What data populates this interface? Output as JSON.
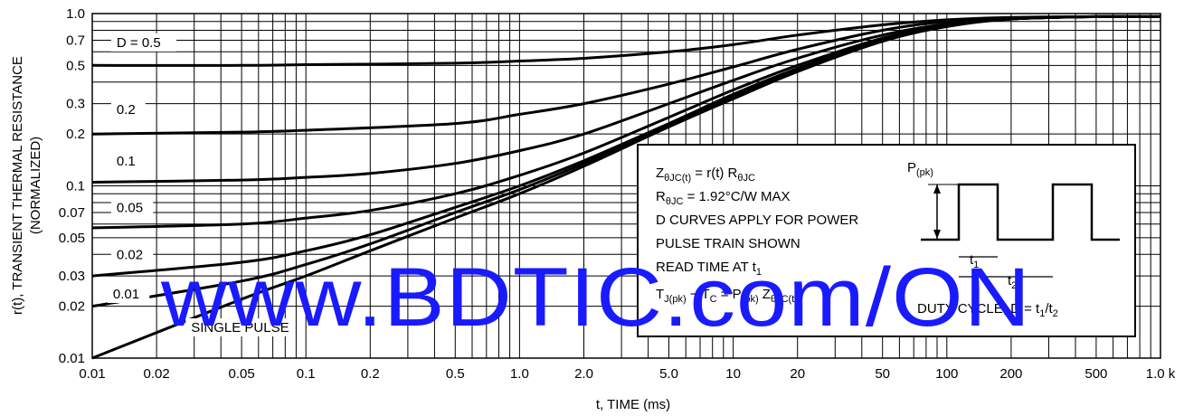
{
  "chart_data": {
    "type": "line",
    "title": "",
    "xlabel": "t, TIME (ms)",
    "ylabel": "r(t), TRANSIENT THERMAL RESISTANCE",
    "ylabel_sub": "(NORMALIZED)",
    "xscale": "log",
    "yscale": "log",
    "xlim": [
      0.01,
      1000
    ],
    "ylim": [
      0.01,
      1.0
    ],
    "grid": true,
    "x_ticks": [
      0.01,
      0.02,
      0.05,
      0.1,
      0.2,
      0.5,
      1.0,
      2.0,
      5.0,
      10,
      20,
      50,
      100,
      200,
      500,
      1000
    ],
    "x_tick_labels": [
      "0.01",
      "0.02",
      "0.05",
      "0.1",
      "0.2",
      "0.5",
      "1.0",
      "2.0",
      "5.0",
      "10",
      "20",
      "50",
      "100",
      "200",
      "500",
      "1.0 k"
    ],
    "y_ticks": [
      0.01,
      0.02,
      0.03,
      0.05,
      0.07,
      0.1,
      0.2,
      0.3,
      0.5,
      0.7,
      1.0
    ],
    "y_tick_labels": [
      "0.01",
      "0.02",
      "0.03",
      "0.05",
      "0.07",
      "0.1",
      "0.2",
      "0.3",
      "0.5",
      "0.7",
      "1.0"
    ],
    "series": [
      {
        "name": "D = 0.5",
        "x": [
          0.01,
          0.05,
          0.1,
          0.5,
          1,
          2,
          5,
          10,
          20,
          50,
          100,
          200,
          500,
          1000
        ],
        "y": [
          0.5,
          0.5,
          0.505,
          0.515,
          0.53,
          0.55,
          0.6,
          0.66,
          0.75,
          0.86,
          0.92,
          0.95,
          0.96,
          0.96
        ]
      },
      {
        "name": "0.2",
        "x": [
          0.01,
          0.05,
          0.1,
          0.5,
          1,
          2,
          5,
          10,
          20,
          50,
          100,
          200,
          500,
          1000
        ],
        "y": [
          0.2,
          0.205,
          0.21,
          0.23,
          0.26,
          0.3,
          0.39,
          0.49,
          0.62,
          0.8,
          0.9,
          0.94,
          0.96,
          0.96
        ]
      },
      {
        "name": "0.1",
        "x": [
          0.01,
          0.05,
          0.1,
          0.2,
          0.5,
          1,
          2,
          5,
          10,
          20,
          50,
          100,
          200,
          500,
          1000
        ],
        "y": [
          0.105,
          0.108,
          0.112,
          0.118,
          0.135,
          0.16,
          0.2,
          0.3,
          0.41,
          0.55,
          0.75,
          0.87,
          0.93,
          0.96,
          0.96
        ]
      },
      {
        "name": "0.05",
        "x": [
          0.01,
          0.05,
          0.1,
          0.2,
          0.5,
          1,
          2,
          5,
          10,
          20,
          50,
          100,
          200,
          500,
          1000
        ],
        "y": [
          0.057,
          0.06,
          0.065,
          0.072,
          0.09,
          0.115,
          0.155,
          0.25,
          0.36,
          0.5,
          0.72,
          0.86,
          0.93,
          0.96,
          0.96
        ]
      },
      {
        "name": "0.02",
        "x": [
          0.01,
          0.05,
          0.1,
          0.2,
          0.5,
          1,
          2,
          5,
          10,
          20,
          50,
          100,
          200,
          500,
          1000
        ],
        "y": [
          0.03,
          0.036,
          0.042,
          0.052,
          0.075,
          0.1,
          0.14,
          0.23,
          0.34,
          0.48,
          0.71,
          0.85,
          0.93,
          0.96,
          0.96
        ]
      },
      {
        "name": "0.01",
        "x": [
          0.01,
          0.05,
          0.1,
          0.2,
          0.5,
          1,
          2,
          5,
          10,
          20,
          50,
          100,
          200,
          500,
          1000
        ],
        "y": [
          0.02,
          0.028,
          0.035,
          0.046,
          0.07,
          0.095,
          0.135,
          0.225,
          0.33,
          0.47,
          0.7,
          0.85,
          0.93,
          0.96,
          0.96
        ]
      },
      {
        "name": "SINGLE PULSE",
        "x": [
          0.01,
          0.05,
          0.1,
          0.2,
          0.5,
          1,
          2,
          5,
          10,
          20,
          50,
          100,
          200,
          500,
          1000
        ],
        "y": [
          0.01,
          0.022,
          0.03,
          0.042,
          0.065,
          0.09,
          0.13,
          0.22,
          0.32,
          0.46,
          0.69,
          0.84,
          0.93,
          0.96,
          0.96
        ]
      }
    ],
    "annotations": {
      "formula1": "ZθJC(t) = r(t) RθJC",
      "formula2": "RθJC = 1.92°C/W MAX",
      "line3": "D CURVES APPLY FOR POWER",
      "line4": "PULSE TRAIN SHOWN",
      "line5": "READ TIME AT t1",
      "formula6": "TJ(pk) − TC = P(pk) ZθJC(t)",
      "ppk": "P(pk)",
      "t1": "t1",
      "t2": "t2",
      "duty": "DUTY CYCLE, D = t1/t2"
    },
    "watermark": "www.BDTIC.com/ON"
  }
}
